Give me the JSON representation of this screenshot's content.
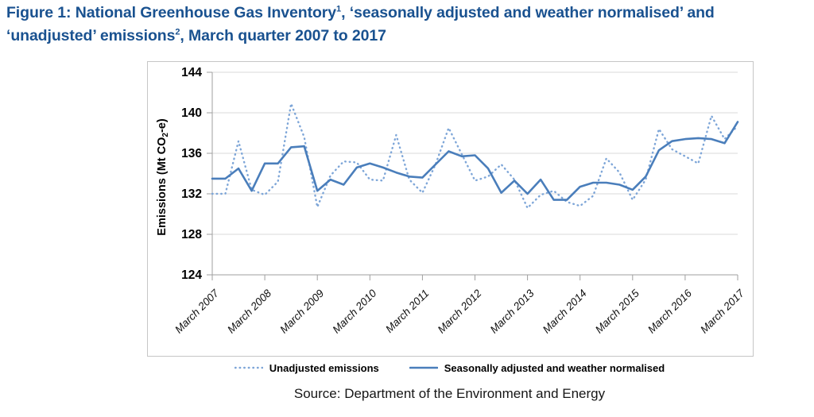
{
  "figure": {
    "title": {
      "part1": "Figure 1: National Greenhouse Gas Inventory",
      "sup1": "1",
      "part2": ", ‘seasonally adjusted and weather normalised’ and ‘unadjusted’ emissions",
      "sup2": "2",
      "part3": ", March quarter 2007 to 2017"
    },
    "source": "Source: Department of the Environment and Energy"
  },
  "chart_data": {
    "type": "line",
    "title": "",
    "xlabel": "",
    "ylabel": "Emissions (Mt CO2-e)",
    "ylabel_parts": {
      "pre": "Emissions (Mt CO",
      "sub": "2",
      "post": "-e)"
    },
    "ylim": [
      124,
      144
    ],
    "yticks": [
      124,
      128,
      132,
      136,
      140,
      144
    ],
    "grid": "horizontal",
    "legend_position": "bottom",
    "categories": [
      "Mar 2007",
      "Jun 2007",
      "Sep 2007",
      "Dec 2007",
      "Mar 2008",
      "Jun 2008",
      "Sep 2008",
      "Dec 2008",
      "Mar 2009",
      "Jun 2009",
      "Sep 2009",
      "Dec 2009",
      "Mar 2010",
      "Jun 2010",
      "Sep 2010",
      "Dec 2010",
      "Mar 2011",
      "Jun 2011",
      "Sep 2011",
      "Dec 2011",
      "Mar 2012",
      "Jun 2012",
      "Sep 2012",
      "Dec 2012",
      "Mar 2013",
      "Jun 2013",
      "Sep 2013",
      "Dec 2013",
      "Mar 2014",
      "Jun 2014",
      "Sep 2014",
      "Dec 2014",
      "Mar 2015",
      "Jun 2015",
      "Sep 2015",
      "Dec 2015",
      "Mar 2016",
      "Jun 2016",
      "Sep 2016",
      "Dec 2016",
      "Mar 2017"
    ],
    "xtick_indices": [
      0,
      4,
      8,
      12,
      16,
      20,
      24,
      28,
      32,
      36,
      40
    ],
    "xtick_labels": [
      "March 2007",
      "March 2008",
      "March 2009",
      "March 2010",
      "March 2011",
      "March 2012",
      "March 2013",
      "March 2014",
      "March 2015",
      "March 2016",
      "March 2017"
    ],
    "series": [
      {
        "name": "Unadjusted emissions",
        "style": "dotted",
        "color": "#7ea6d8",
        "values": [
          132.0,
          132.0,
          137.2,
          132.4,
          131.9,
          133.2,
          140.9,
          137.6,
          130.7,
          133.8,
          135.2,
          135.1,
          133.4,
          133.3,
          137.8,
          133.4,
          132.1,
          134.9,
          138.5,
          135.9,
          133.3,
          133.7,
          134.9,
          133.4,
          130.6,
          131.9,
          132.3,
          131.2,
          130.8,
          131.8,
          135.5,
          134.1,
          131.4,
          133.4,
          138.4,
          136.4,
          135.7,
          135.0,
          139.7,
          137.4,
          138.7
        ]
      },
      {
        "name": "Seasonally adjusted and weather normalised",
        "style": "solid",
        "color": "#4a7ebb",
        "values": [
          133.5,
          133.5,
          134.5,
          132.3,
          135.0,
          135.0,
          136.6,
          136.7,
          132.3,
          133.4,
          132.9,
          134.6,
          135.0,
          134.6,
          134.1,
          133.7,
          133.6,
          134.9,
          136.2,
          135.7,
          135.8,
          134.5,
          132.1,
          133.3,
          132.0,
          133.4,
          131.4,
          131.4,
          132.7,
          133.1,
          133.1,
          132.9,
          132.4,
          133.7,
          136.3,
          137.2,
          137.4,
          137.5,
          137.4,
          137.0,
          139.1
        ]
      }
    ],
    "colors": {
      "grid": "#d9d9d9",
      "axis": "#9f9f9f",
      "tick_text": "#000000"
    }
  }
}
